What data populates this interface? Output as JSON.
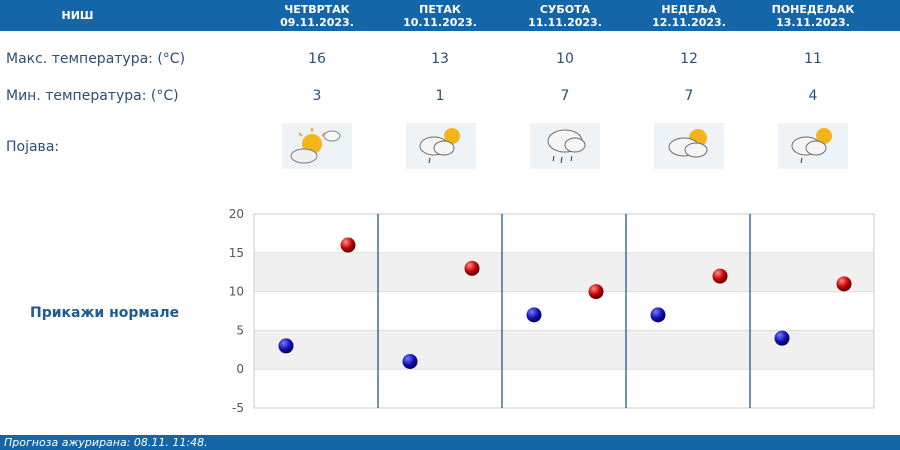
{
  "header": {
    "city": "НИШ",
    "days": [
      {
        "name": "ЧЕТВРТАК",
        "date": "09.11.2023."
      },
      {
        "name": "ПЕТАК",
        "date": "10.11.2023."
      },
      {
        "name": "СУБОТА",
        "date": "11.11.2023."
      },
      {
        "name": "НЕДЕЉА",
        "date": "12.11.2023."
      },
      {
        "name": "ПОНЕДЕЉАК",
        "date": "13.11.2023."
      }
    ]
  },
  "rows": {
    "max_label": "Макс. температура: (°C)",
    "min_label": "Мин. температура: (°C)",
    "phenomenon_label": "Појава:",
    "max": [
      "16",
      "13",
      "10",
      "12",
      "11"
    ],
    "min": [
      "3",
      "1",
      "7",
      "7",
      "4"
    ],
    "icons": [
      "sun-cloud-icon",
      "cloud-sun-drizzle-icon",
      "cloud-rain-icon",
      "sun-cloud-icon",
      "cloud-sun-drizzle-icon"
    ]
  },
  "show_normals_label": "Прикажи нормале",
  "footer_text": "Прогноза ажурирана:  08.11. 11:48.",
  "colors": {
    "accent": "#1565a9",
    "max_point": "#c40000",
    "min_point": "#1010b0"
  },
  "chart_data": {
    "type": "scatter",
    "categories": [
      "09.11.2023.",
      "10.11.2023.",
      "11.11.2023.",
      "12.11.2023.",
      "13.11.2023."
    ],
    "series": [
      {
        "values": [
          3,
          1,
          7,
          7,
          4
        ]
      },
      {
        "values": [
          16,
          13,
          10,
          12,
          11
        ]
      }
    ],
    "y_ticks": [
      "20",
      "15",
      "10",
      "5",
      "0",
      "-5"
    ],
    "ylim": [
      -5,
      20
    ],
    "grid": true
  }
}
